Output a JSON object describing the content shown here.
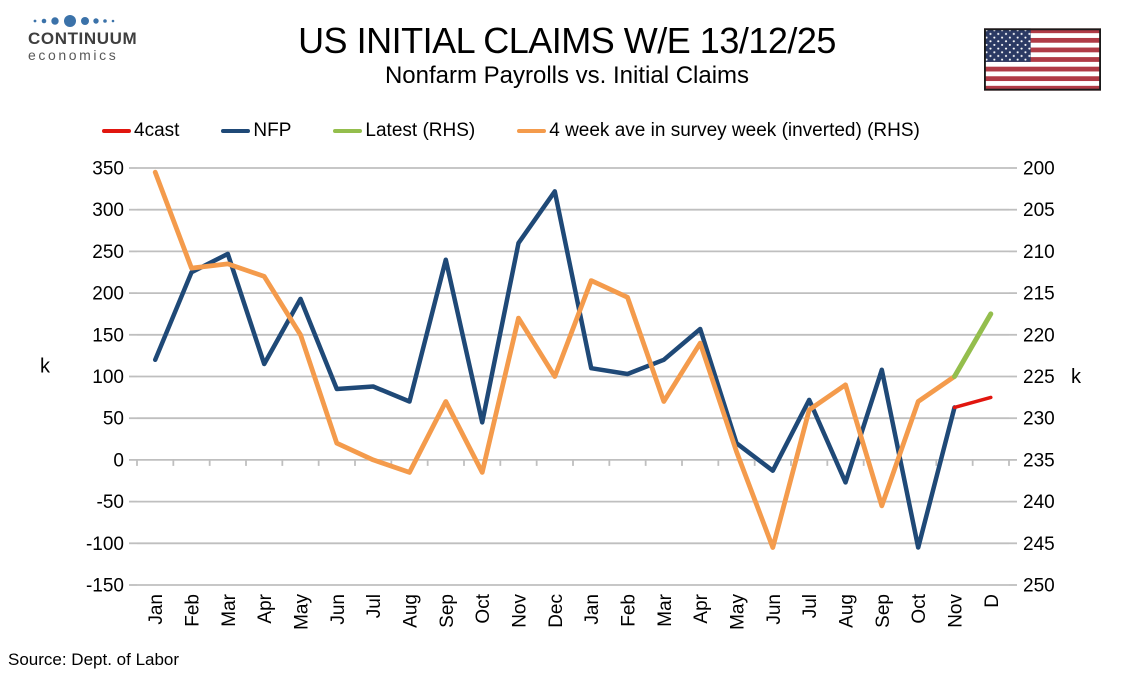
{
  "header": {
    "logo_line1": "CONTINUUM",
    "logo_line2": "economics",
    "title": "US INITIAL CLAIMS W/E 13/12/25",
    "subtitle": "Nonfarm Payrolls vs. Initial Claims"
  },
  "source": "Source: Dept. of Labor",
  "colors": {
    "forecast_red": "#e1160f",
    "nfp_navy": "#1f4977",
    "latest_green": "#94be4d",
    "claims_orange": "#f49b4c",
    "gridline_gray": "#bfbfbf",
    "logo_blue": "#3b72a9",
    "flag_red": "#b03b46",
    "flag_navy": "#2b3a64"
  },
  "chart_data": {
    "type": "line",
    "title": "US INITIAL CLAIMS W/E 13/12/25",
    "subtitle": "Nonfarm Payrolls vs. Initial Claims",
    "grid": true,
    "legend_position": "top",
    "categories": [
      "Jan",
      "Feb",
      "Mar",
      "Apr",
      "May",
      "Jun",
      "Jul",
      "Aug",
      "Sep",
      "Oct",
      "Nov",
      "Dec",
      "Jan",
      "Feb",
      "Mar",
      "Apr",
      "May",
      "Jun",
      "Jul",
      "Aug",
      "Sep",
      "Oct",
      "Nov",
      "D"
    ],
    "left_axis": {
      "label": "k",
      "min": -150,
      "max": 350,
      "tick_step": 50,
      "ticks": [
        350,
        300,
        250,
        200,
        150,
        100,
        50,
        0,
        -50,
        -100,
        -150
      ]
    },
    "right_axis": {
      "label": "k",
      "min": 200,
      "max": 250,
      "tick_step": 5,
      "inverted": true,
      "ticks": [
        200,
        205,
        210,
        215,
        220,
        225,
        230,
        235,
        240,
        245,
        250
      ]
    },
    "series": [
      {
        "name": "4cast",
        "color": "#e1160f",
        "axis": "left",
        "values": [
          null,
          null,
          null,
          null,
          null,
          null,
          null,
          null,
          null,
          null,
          null,
          null,
          null,
          null,
          null,
          null,
          null,
          null,
          null,
          null,
          null,
          null,
          63,
          75
        ]
      },
      {
        "name": "NFP",
        "color": "#1f4977",
        "axis": "left",
        "values": [
          120,
          225,
          247,
          115,
          193,
          85,
          88,
          70,
          240,
          45,
          260,
          322,
          110,
          103,
          120,
          157,
          20,
          -13,
          72,
          -27,
          108,
          -105,
          63,
          null
        ]
      },
      {
        "name": "Latest (RHS)",
        "color": "#94be4d",
        "axis": "right",
        "values": [
          null,
          null,
          null,
          null,
          null,
          null,
          null,
          null,
          null,
          null,
          null,
          null,
          null,
          null,
          null,
          null,
          null,
          null,
          null,
          null,
          null,
          null,
          225,
          217.5
        ]
      },
      {
        "name": "4 week ave in survey week (inverted) (RHS)",
        "color": "#f49b4c",
        "axis": "right",
        "values": [
          200.5,
          212,
          211.5,
          213,
          220,
          233,
          235,
          236.5,
          228,
          236.5,
          218,
          225,
          213.5,
          215.5,
          228,
          221,
          234,
          245.5,
          229,
          226,
          240.5,
          228,
          225,
          null
        ]
      }
    ]
  }
}
